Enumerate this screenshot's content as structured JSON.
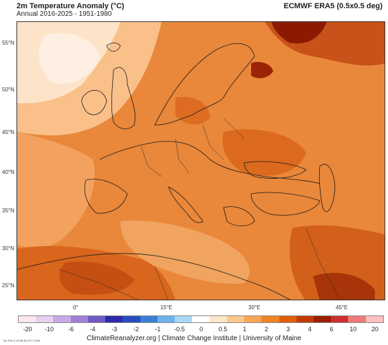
{
  "header": {
    "title": "2m Temperature Anomaly (°C)",
    "subtitle": "Annual 2016-2025 - 1951-1980",
    "source": "ECMWF ERA5 (0.5x0.5 deg)"
  },
  "map": {
    "lat_labels": [
      "55°N",
      "50°N",
      "45°N",
      "40°N",
      "35°N",
      "30°N",
      "25°N"
    ],
    "lon_labels": [
      "0°",
      "15°E",
      "30°E",
      "45°E"
    ]
  },
  "legend": {
    "ticks": [
      "-20",
      "-10",
      "-6",
      "-4",
      "-3",
      "-2",
      "-1",
      "-0.5",
      "0",
      "0.5",
      "1",
      "2",
      "3",
      "4",
      "6",
      "10",
      "20"
    ],
    "colors": [
      "#fde6ef",
      "#e7d0f0",
      "#c9a8e8",
      "#a07fd8",
      "#6f5bc6",
      "#2c2aa6",
      "#274cc0",
      "#3a7fd6",
      "#6fb2ee",
      "#a9d8f6",
      "#ffffff",
      "#fde6c8",
      "#fbc98e",
      "#f7a655",
      "#ef8326",
      "#de5e0a",
      "#c03a02",
      "#9a1e00",
      "#cc2f2f",
      "#ef7a7a",
      "#fbc0c0"
    ]
  },
  "footer": {
    "credit": "ClimateReanalyzer.org | Climate Change Institute | University of Maine",
    "timestamp": "Tue Feb 3 16:56:36 UTC 2026"
  }
}
